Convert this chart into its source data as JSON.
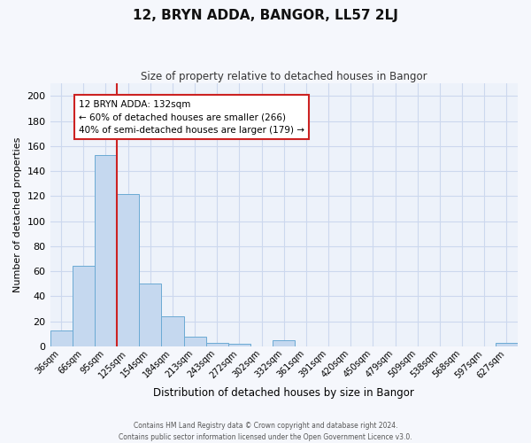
{
  "title": "12, BRYN ADDA, BANGOR, LL57 2LJ",
  "subtitle": "Size of property relative to detached houses in Bangor",
  "xlabel": "Distribution of detached houses by size in Bangor",
  "ylabel": "Number of detached properties",
  "bar_labels": [
    "36sqm",
    "66sqm",
    "95sqm",
    "125sqm",
    "154sqm",
    "184sqm",
    "213sqm",
    "243sqm",
    "272sqm",
    "302sqm",
    "332sqm",
    "361sqm",
    "391sqm",
    "420sqm",
    "450sqm",
    "479sqm",
    "509sqm",
    "538sqm",
    "568sqm",
    "597sqm",
    "627sqm"
  ],
  "bar_values": [
    13,
    64,
    153,
    122,
    50,
    24,
    8,
    3,
    2,
    0,
    5,
    0,
    0,
    0,
    0,
    0,
    0,
    0,
    0,
    0,
    3
  ],
  "bar_color": "#c5d8ef",
  "bar_edge_color": "#6baad4",
  "grid_color": "#ccd8ee",
  "background_color": "#edf2fa",
  "fig_background_color": "#f5f7fc",
  "vline_color": "#cc2222",
  "vline_bin_index": 3,
  "annotation_title": "12 BRYN ADDA: 132sqm",
  "annotation_line1": "← 60% of detached houses are smaller (266)",
  "annotation_line2": "40% of semi-detached houses are larger (179) →",
  "annotation_box_facecolor": "#ffffff",
  "annotation_box_edgecolor": "#cc2222",
  "ylim": [
    0,
    210
  ],
  "yticks": [
    0,
    20,
    40,
    60,
    80,
    100,
    120,
    140,
    160,
    180,
    200
  ],
  "footer1": "Contains HM Land Registry data © Crown copyright and database right 2024.",
  "footer2": "Contains public sector information licensed under the Open Government Licence v3.0."
}
